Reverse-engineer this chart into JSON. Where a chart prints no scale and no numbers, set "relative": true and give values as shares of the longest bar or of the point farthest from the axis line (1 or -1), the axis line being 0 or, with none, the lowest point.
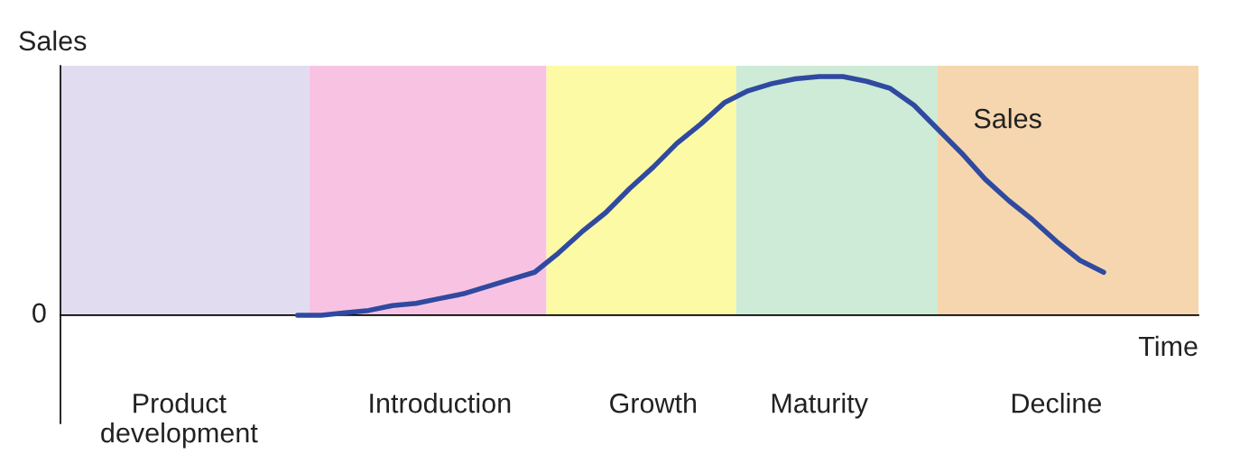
{
  "chart_data": {
    "type": "line",
    "relative": true,
    "xlabel": "Time",
    "ylabel": "Sales",
    "annotations": [
      "0"
    ],
    "categories": [
      null,
      null,
      null,
      null,
      null,
      "Product\ndevelopment",
      null,
      null,
      null,
      null,
      null,
      null,
      null,
      null,
      null,
      null,
      "Introduction",
      null,
      null,
      null,
      null,
      null,
      null,
      null,
      null,
      "Growth",
      null,
      null,
      null,
      null,
      null,
      null,
      "Maturity",
      null,
      null,
      null,
      null,
      null,
      null,
      null,
      null,
      null,
      "Decline",
      null,
      null,
      null,
      null,
      null,
      null
    ],
    "series": [
      {
        "name": "Sales",
        "color": "#2f4aa0",
        "values": [
          null,
          null,
          null,
          null,
          null,
          null,
          null,
          null,
          null,
          null,
          0,
          0.0,
          0.01,
          0.02,
          0.04,
          0.05,
          0.07,
          0.09,
          0.12,
          0.15,
          0.18,
          0.26,
          0.35,
          0.43,
          0.53,
          0.62,
          0.72,
          0.8,
          0.89,
          0.94,
          0.97,
          0.99,
          1,
          1.0,
          0.98,
          0.95,
          0.88,
          0.78,
          0.68,
          0.57,
          0.48,
          0.4,
          0.31,
          0.23,
          0.18,
          null,
          null,
          null,
          null
        ]
      }
    ],
    "grid": false,
    "legend": false,
    "marker": "none",
    "line_style": "solid"
  }
}
